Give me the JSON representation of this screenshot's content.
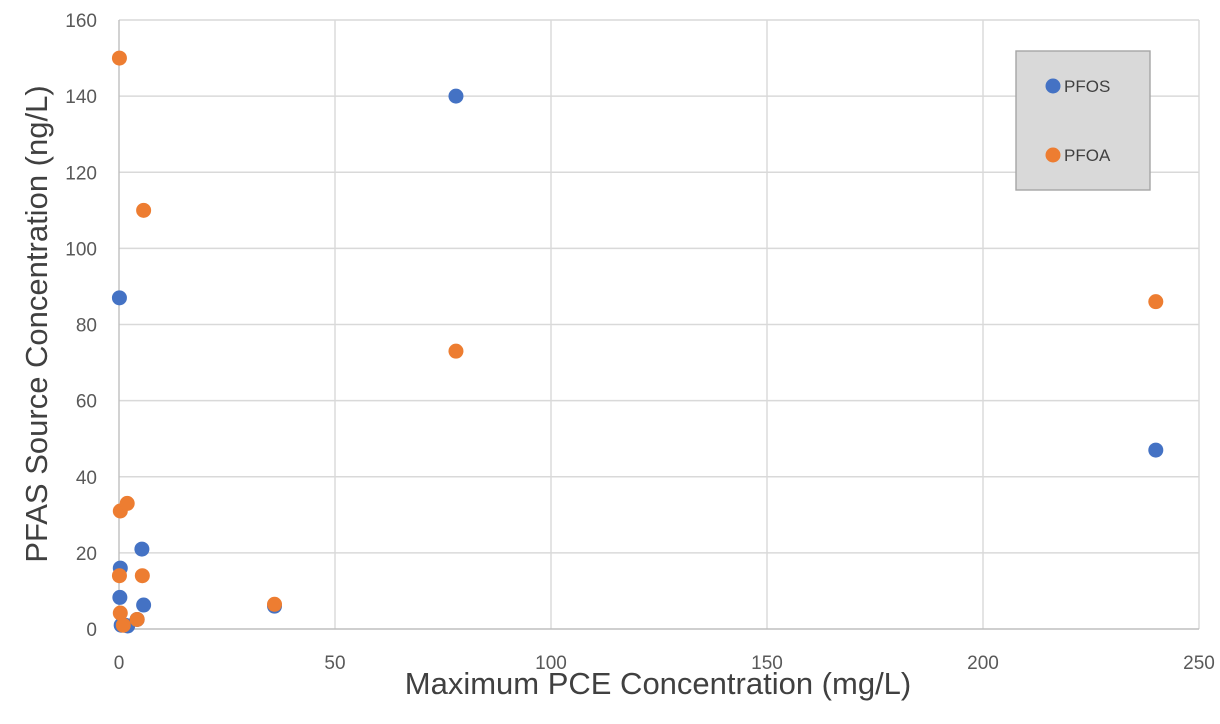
{
  "chart_data": {
    "type": "scatter",
    "title": "",
    "xlabel": "Maximum PCE Concentration (mg/L)",
    "ylabel": "PFAS Source Concentration (ng/L)",
    "xlim": [
      0,
      250
    ],
    "ylim": [
      0,
      160
    ],
    "xticks": [
      0,
      50,
      100,
      150,
      200,
      250
    ],
    "yticks": [
      0,
      20,
      40,
      60,
      80,
      100,
      120,
      140,
      160
    ],
    "grid": true,
    "legend_position": "top-right",
    "series": [
      {
        "name": "PFOS",
        "color": "#4472c4",
        "points": [
          [
            0.1,
            87
          ],
          [
            0.3,
            16
          ],
          [
            0.2,
            8.3
          ],
          [
            0.5,
            1
          ],
          [
            1.5,
            1
          ],
          [
            2.0,
            0.8
          ],
          [
            4.2,
            2.5
          ],
          [
            5.3,
            21
          ],
          [
            5.7,
            6.3
          ],
          [
            36,
            6
          ],
          [
            78,
            140
          ],
          [
            240,
            47
          ]
        ]
      },
      {
        "name": "PFOA",
        "color": "#ed7d31",
        "points": [
          [
            0.1,
            150
          ],
          [
            0.3,
            31
          ],
          [
            0.1,
            14
          ],
          [
            0.3,
            4.2
          ],
          [
            1.0,
            1
          ],
          [
            1.9,
            33
          ],
          [
            4.2,
            2.5
          ],
          [
            5.7,
            110
          ],
          [
            5.4,
            14
          ],
          [
            36,
            6.5
          ],
          [
            78,
            73
          ],
          [
            240,
            86
          ]
        ]
      }
    ]
  }
}
